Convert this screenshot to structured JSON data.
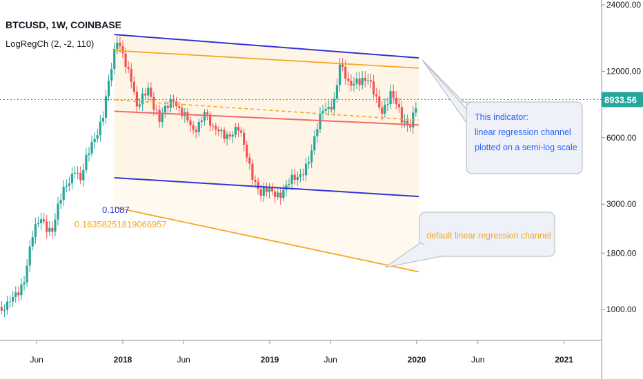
{
  "legend": {
    "title": "BTCUSD, 1W, COINBASE",
    "indicator": "LogRegCh (2, -2, 110)"
  },
  "price_axis": {
    "ticks": [
      "24000.00",
      "12000.00",
      "6000.00",
      "3000.00",
      "1800.00",
      "1000.00"
    ],
    "tick_values": [
      24000,
      12000,
      6000,
      3000,
      1800,
      1000
    ],
    "last_price_label": "8933.56",
    "last_price_value": 8933.56
  },
  "time_axis": {
    "ticks": [
      "Jun",
      "2018",
      "Jun",
      "2019",
      "Jun",
      "2020",
      "Jun",
      "2021"
    ],
    "bold_ticks": [
      "2018",
      "2019",
      "2020",
      "2021"
    ]
  },
  "annotations": {
    "semilog_value": "0.1087",
    "linear_value": "0.16358251819066957",
    "semilog_callout": [
      "This indicator:",
      "linear regression channel",
      "plotted on a semi-log scale"
    ],
    "linear_callout": "default linear regression channel"
  },
  "colors": {
    "up": "#26a69a",
    "down": "#ef5350",
    "semilog_channel": "#3034d6",
    "linear_channel": "#f5a623",
    "regression_mid": "#ef6b6b",
    "fill": "#fff5e6",
    "last_price_badge": "#26a69a",
    "callout_text": "#2962ff",
    "callout_text_orange": "#f5a623"
  },
  "chart_data": {
    "type": "candlestick",
    "symbol": "BTCUSD",
    "interval": "1W",
    "exchange": "COINBASE",
    "y_scale": "log",
    "ylim": [
      760,
      31000
    ],
    "x_range": [
      "2017-03",
      "2021-06"
    ],
    "grid": false,
    "legend_position": "top-left",
    "close_anchors": [
      {
        "date": "2017-03-20",
        "close": 1000
      },
      {
        "date": "2017-04-10",
        "close": 1180
      },
      {
        "date": "2017-05-01",
        "close": 1400
      },
      {
        "date": "2017-05-22",
        "close": 2100
      },
      {
        "date": "2017-06-12",
        "close": 2600
      },
      {
        "date": "2017-07-10",
        "close": 2300
      },
      {
        "date": "2017-08-07",
        "close": 3400
      },
      {
        "date": "2017-09-04",
        "close": 4500
      },
      {
        "date": "2017-09-18",
        "close": 3800
      },
      {
        "date": "2017-10-16",
        "close": 5600
      },
      {
        "date": "2017-11-13",
        "close": 7800
      },
      {
        "date": "2017-12-04",
        "close": 12000
      },
      {
        "date": "2017-12-18",
        "close": 16500
      },
      {
        "date": "2018-01-01",
        "close": 15000
      },
      {
        "date": "2018-01-22",
        "close": 11000
      },
      {
        "date": "2018-02-05",
        "close": 7800
      },
      {
        "date": "2018-03-05",
        "close": 10500
      },
      {
        "date": "2018-04-02",
        "close": 7000
      },
      {
        "date": "2018-05-07",
        "close": 9300
      },
      {
        "date": "2018-06-25",
        "close": 6200
      },
      {
        "date": "2018-07-23",
        "close": 8200
      },
      {
        "date": "2018-08-13",
        "close": 6300
      },
      {
        "date": "2018-10-15",
        "close": 6400
      },
      {
        "date": "2018-11-19",
        "close": 4200
      },
      {
        "date": "2018-12-10",
        "close": 3300
      },
      {
        "date": "2019-01-28",
        "close": 3450
      },
      {
        "date": "2019-03-11",
        "close": 3900
      },
      {
        "date": "2019-04-15",
        "close": 5200
      },
      {
        "date": "2019-05-13",
        "close": 8000
      },
      {
        "date": "2019-06-10",
        "close": 9000
      },
      {
        "date": "2019-06-24",
        "close": 12500
      },
      {
        "date": "2019-07-15",
        "close": 10300
      },
      {
        "date": "2019-08-05",
        "close": 11400
      },
      {
        "date": "2019-09-02",
        "close": 10500
      },
      {
        "date": "2019-10-07",
        "close": 8200
      },
      {
        "date": "2019-10-28",
        "close": 9300
      },
      {
        "date": "2019-11-25",
        "close": 7300
      },
      {
        "date": "2019-12-16",
        "close": 7100
      },
      {
        "date": "2020-01-06",
        "close": 8934
      }
    ],
    "semilog_channel": {
      "upper": [
        {
          "date": "2017-12-11",
          "value": 17600
        },
        {
          "date": "2020-01-06",
          "value": 13800
        }
      ],
      "lower": [
        {
          "date": "2017-12-11",
          "value": 3950
        },
        {
          "date": "2020-01-06",
          "value": 3250
        }
      ],
      "mid": [
        {
          "date": "2017-12-11",
          "value": 7900
        },
        {
          "date": "2020-01-06",
          "value": 6850
        }
      ]
    },
    "linear_channel": {
      "upper": [
        {
          "date": "2017-12-11",
          "value": 14900
        },
        {
          "date": "2020-01-06",
          "value": 12400
        }
      ],
      "lower": [
        {
          "date": "2017-12-11",
          "value": 2900
        },
        {
          "date": "2020-01-06",
          "value": 1480
        }
      ],
      "mid": [
        {
          "date": "2017-12-11",
          "value": 8900
        },
        {
          "date": "2020-01-06",
          "value": 7200
        }
      ]
    }
  }
}
